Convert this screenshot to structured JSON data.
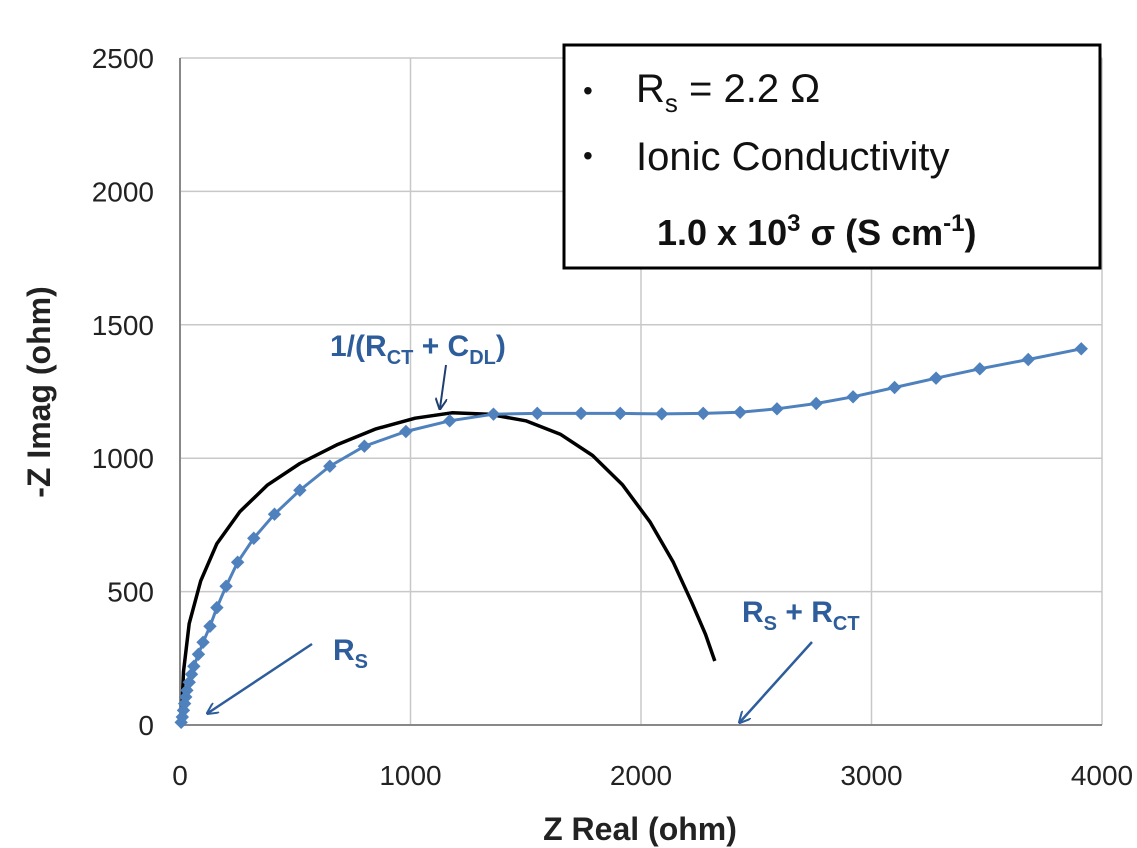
{
  "chart_data": {
    "type": "scatter",
    "xlabel": "Z Real (ohm)",
    "ylabel": "-Z Imag (ohm)",
    "xlim": [
      0,
      4000
    ],
    "ylim": [
      0,
      2500
    ],
    "xticks": [
      0,
      1000,
      2000,
      3000,
      4000
    ],
    "yticks": [
      0,
      500,
      1000,
      1500,
      2000,
      2500
    ],
    "xtick_labels": [
      "0",
      "1000",
      "2000",
      "3000",
      "4000"
    ],
    "ytick_labels": [
      "0",
      "500",
      "1000",
      "1500",
      "2000",
      "2500"
    ],
    "grid": true,
    "series": [
      {
        "marker": "diamond",
        "color": "#4f81bd",
        "x": [
          5,
          10,
          15,
          20,
          25,
          30,
          40,
          50,
          60,
          80,
          100,
          130,
          160,
          200,
          250,
          320,
          410,
          520,
          650,
          800,
          980,
          1170,
          1360,
          1550,
          1740,
          1910,
          2090,
          2270,
          2430,
          2590,
          2760,
          2920,
          3100,
          3280,
          3470,
          3680,
          3910
        ],
        "y": [
          10,
          30,
          55,
          80,
          105,
          130,
          160,
          190,
          220,
          265,
          310,
          370,
          440,
          520,
          610,
          700,
          790,
          880,
          970,
          1045,
          1100,
          1140,
          1165,
          1168,
          1168,
          1168,
          1166,
          1168,
          1172,
          1185,
          1205,
          1230,
          1265,
          1300,
          1335,
          1370,
          1410
        ]
      },
      {
        "type": "line",
        "color": "#000000",
        "x": [
          5,
          15,
          40,
          90,
          160,
          260,
          380,
          520,
          680,
          850,
          1020,
          1180,
          1340,
          1500,
          1650,
          1790,
          1920,
          2040,
          2140,
          2220,
          2280,
          2320
        ],
        "y": [
          0,
          200,
          380,
          540,
          680,
          800,
          900,
          980,
          1050,
          1110,
          1150,
          1170,
          1165,
          1140,
          1090,
          1010,
          900,
          760,
          610,
          460,
          340,
          240
        ]
      }
    ],
    "annotations": [
      {
        "text": "1/(R",
        "sub1": "CT",
        "mid": " + C",
        "sub2": "DL",
        "end": ")",
        "arrow_to": [
          1140,
          1170
        ]
      },
      {
        "text": "R",
        "sub1": "S",
        "arrow_to": [
          20,
          30
        ]
      },
      {
        "text": "R",
        "sub1": "S",
        "mid": " + R",
        "sub2": "CT",
        "arrow_to": [
          2420,
          0
        ]
      }
    ],
    "legend": {
      "placement": "top-right",
      "items": [
        {
          "prefix": "R",
          "sub": "s",
          "suffix": " = 2.2 Ω"
        },
        {
          "text": "Ionic Conductivity"
        },
        {
          "main": "1.0 x 10",
          "sup1": "3",
          "mid": " σ (S cm",
          "sup2": "-1",
          "end": ")"
        }
      ]
    }
  }
}
